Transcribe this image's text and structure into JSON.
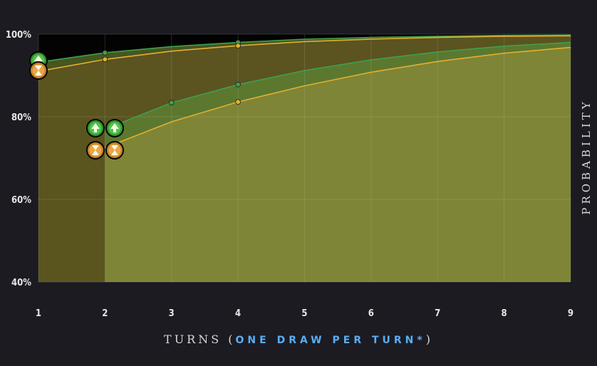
{
  "chart_data": {
    "type": "area",
    "xlabel_prefix": "TURNS (",
    "xlabel_emphasis": "ONE DRAW PER TURN*",
    "xlabel_suffix": ")",
    "ylabel": "PROBABILITY",
    "x": [
      1,
      2,
      3,
      4,
      5,
      6,
      7,
      8,
      9
    ],
    "x_ticks": [
      "1",
      "2",
      "3",
      "4",
      "5",
      "6",
      "7",
      "8",
      "9"
    ],
    "y_ticks": [
      "40%",
      "60%",
      "80%",
      "100%"
    ],
    "y_tick_values": [
      40,
      60,
      80,
      100
    ],
    "ylim": [
      40,
      100
    ],
    "xlim": [
      1,
      9
    ],
    "grid": true,
    "series": [
      {
        "x": [
          1,
          2,
          3,
          4,
          5,
          6,
          7,
          8,
          9
        ],
        "values": [
          93.2,
          95.5,
          97.0,
          98.0,
          98.8,
          99.2,
          99.5,
          99.7,
          99.8
        ],
        "color": "#3fa04a",
        "icon": "green-tree-icon",
        "markers_at": [
          2,
          4
        ]
      },
      {
        "x": [
          1,
          2,
          3,
          4,
          5,
          6,
          7,
          8,
          9
        ],
        "values": [
          91.0,
          93.9,
          95.9,
          97.2,
          98.2,
          98.8,
          99.2,
          99.5,
          99.6
        ],
        "color": "#e0b030",
        "icon": "gold-hourglass-icon",
        "markers_at": [
          2,
          4
        ]
      },
      {
        "x": [
          2,
          3,
          4,
          5,
          6,
          7,
          8,
          9
        ],
        "values": [
          77.0,
          83.4,
          87.8,
          91.2,
          93.8,
          95.7,
          97.1,
          98.0
        ],
        "color": "#3fa04a",
        "icon": "green-tree-icon",
        "markers_at": [
          3,
          4
        ]
      },
      {
        "x": [
          2,
          3,
          4,
          5,
          6,
          7,
          8,
          9
        ],
        "values": [
          72.5,
          78.8,
          83.6,
          87.5,
          90.8,
          93.4,
          95.4,
          96.8
        ],
        "color": "#e0b030",
        "icon": "gold-hourglass-icon",
        "markers_at": [
          4
        ]
      }
    ],
    "colors": {
      "background": "#1c1b22",
      "plot_black": "#030303",
      "upper_fill": "#5b5320",
      "lower_fill": "#7f8536",
      "gray_band": "#5a5520"
    }
  }
}
